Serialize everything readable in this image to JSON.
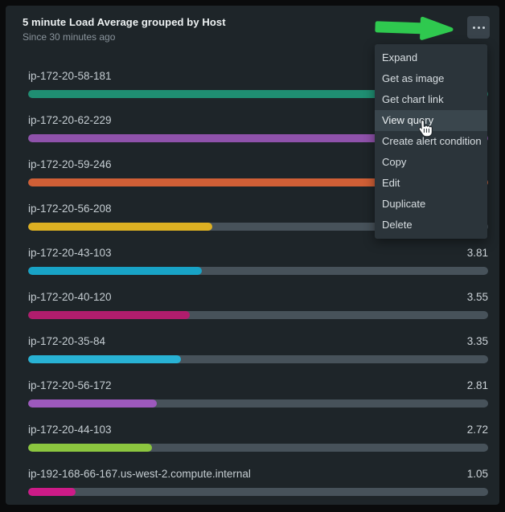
{
  "header": {
    "title": "5 minute Load Average grouped by Host",
    "subtitle": "Since 30 minutes ago"
  },
  "menu_button": {
    "icon": "ellipsis"
  },
  "context_menu": {
    "items": [
      {
        "label": "Expand",
        "highlighted": false
      },
      {
        "label": "Get as image",
        "highlighted": false
      },
      {
        "label": "Get chart link",
        "highlighted": false
      },
      {
        "label": "View query",
        "highlighted": true
      },
      {
        "label": "Create alert condition",
        "highlighted": false
      },
      {
        "label": "Copy",
        "highlighted": false
      },
      {
        "label": "Edit",
        "highlighted": false
      },
      {
        "label": "Duplicate",
        "highlighted": false
      },
      {
        "label": "Delete",
        "highlighted": false
      }
    ]
  },
  "annotation": {
    "arrow_color": "#2fc94f",
    "cursor": "hand-pointer"
  },
  "colors": {
    "panel_bg": "#1e2529",
    "track": "#47525a",
    "menu_bg": "#2b343a",
    "menu_highlight": "#3a464d"
  },
  "chart_data": {
    "type": "bar",
    "orientation": "horizontal",
    "title": "5 minute Load Average grouped by Host",
    "subtitle": "Since 30 minutes ago",
    "x_range_estimate": [
      0,
      10.1
    ],
    "note_values_hidden": "values of first four bars are covered by the open context menu",
    "bars": [
      {
        "host": "ip-172-20-58-181",
        "value": null,
        "display": "",
        "color": "#1f8e72",
        "fill_pct": 100
      },
      {
        "host": "ip-172-20-62-229",
        "value": null,
        "display": "",
        "color": "#8f52ab",
        "fill_pct": 100
      },
      {
        "host": "ip-172-20-59-246",
        "value": null,
        "display": "",
        "color": "#d05f36",
        "fill_pct": 100
      },
      {
        "host": "ip-172-20-56-208",
        "value": null,
        "display": "",
        "color": "#ddb022",
        "fill_pct": 40
      },
      {
        "host": "ip-172-20-43-103",
        "value": 3.81,
        "display": "3.81",
        "color": "#18a3c6",
        "fill_pct": 37.8
      },
      {
        "host": "ip-172-20-40-120",
        "value": 3.55,
        "display": "3.55",
        "color": "#b01d6d",
        "fill_pct": 35.2
      },
      {
        "host": "ip-172-20-35-84",
        "value": 3.35,
        "display": "3.35",
        "color": "#28b2d4",
        "fill_pct": 33.2
      },
      {
        "host": "ip-172-20-56-172",
        "value": 2.81,
        "display": "2.81",
        "color": "#9d59bd",
        "fill_pct": 27.9
      },
      {
        "host": "ip-172-20-44-103",
        "value": 2.72,
        "display": "2.72",
        "color": "#8cc63f",
        "fill_pct": 27
      },
      {
        "host": "ip-192-168-66-167.us-west-2.compute.internal",
        "value": 1.05,
        "display": "1.05",
        "color": "#cd1b88",
        "fill_pct": 10.4
      }
    ]
  }
}
